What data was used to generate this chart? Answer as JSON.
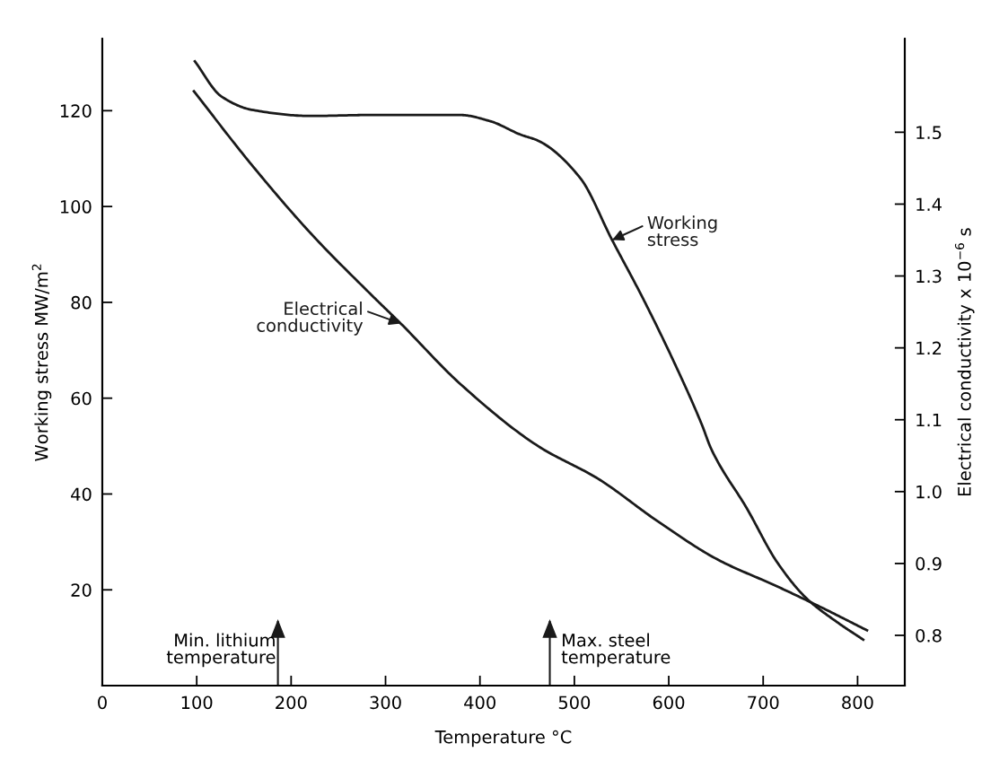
{
  "chart_data": {
    "type": "line",
    "xlabel": "Temperature °C",
    "ylabel": "Working stress MW/m$^{2}$",
    "y2label": "Electrical conductivity x 10$^{−6}$ s",
    "series": [
      {
        "name": "Working stress",
        "color": "#1a1a1a",
        "x": [
          98,
          126,
          158,
          221,
          284,
          379,
          411,
          443,
          462,
          506,
          540,
          573,
          604,
          635,
          645,
          683,
          715,
          746,
          778,
          806
        ],
        "values": [
          130.3,
          123,
          120.2,
          118.9,
          119.1,
          119.1,
          117.8,
          115,
          113.7,
          106,
          93,
          80.7,
          68.2,
          54.5,
          49.4,
          36.9,
          25.7,
          18.2,
          13.3,
          9.6
        ]
      },
      {
        "name": "Electrical conductivity",
        "color": "#1a1a1a",
        "axis": "y2",
        "x": [
          97,
          158,
          221,
          284,
          316,
          379,
          462,
          525,
          588,
          651,
          715,
          763,
          810
        ],
        "values": [
          1.557,
          1.455,
          1.359,
          1.275,
          1.234,
          1.15,
          1.063,
          1.018,
          0.959,
          0.906,
          0.868,
          0.838,
          0.807
        ]
      }
    ],
    "xlim": [
      0,
      850
    ],
    "ylim": [
      0,
      135
    ],
    "y2lim": [
      0.73,
      1.63
    ],
    "xticks": [
      0,
      100,
      200,
      300,
      400,
      500,
      600,
      700,
      800
    ],
    "yticks": [
      20,
      40,
      60,
      80,
      100,
      120
    ],
    "y2ticks": [
      {
        "value": 0.8,
        "label": "0.8"
      },
      {
        "value": 0.9,
        "label": "0.9"
      },
      {
        "value": 1.0,
        "label": "1.0"
      },
      {
        "value": 1.1,
        "label": "1.1"
      },
      {
        "value": 1.2,
        "label": "1.2"
      },
      {
        "value": 1.3,
        "label": "1.3"
      },
      {
        "value": 1.4,
        "label": "1.4"
      },
      {
        "value": 1.5,
        "label": "1.5"
      }
    ],
    "ref_lines": [
      {
        "axis": "x",
        "value": 186,
        "label": "Min. lithium\ntemperature"
      },
      {
        "axis": "x",
        "value": 474,
        "label": "Max. steel\ntemperature"
      }
    ],
    "grid": false,
    "legend": false,
    "line_style": "solid",
    "marker": "none"
  }
}
